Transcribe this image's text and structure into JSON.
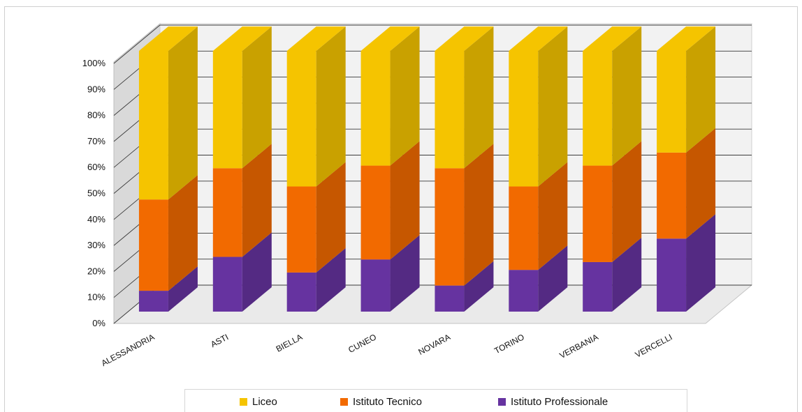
{
  "chart_data": {
    "type": "bar",
    "stacked": true,
    "percent": true,
    "three_d": true,
    "categories": [
      "ALESSANDRIA",
      "ASTI",
      "BIELLA",
      "CUNEO",
      "NOVARA",
      "TORINO",
      "VERBANIA",
      "VERCELLI"
    ],
    "series": [
      {
        "name": "Istituto Professionale",
        "color": "#6633a0",
        "values": [
          8,
          21,
          15,
          20,
          10,
          16,
          19,
          28
        ]
      },
      {
        "name": "Istituto Tecnico",
        "color": "#f26a00",
        "values": [
          35,
          34,
          33,
          36,
          45,
          32,
          37,
          33
        ]
      },
      {
        "name": "Liceo",
        "color": "#f5c400",
        "values": [
          57,
          45,
          52,
          44,
          45,
          52,
          44,
          39
        ]
      }
    ],
    "y_ticks": [
      "0%",
      "10%",
      "20%",
      "30%",
      "40%",
      "50%",
      "60%",
      "70%",
      "80%",
      "90%",
      "100%"
    ],
    "ylim": [
      0,
      100
    ],
    "grid": true,
    "legend_position": "bottom"
  },
  "legend": {
    "items": [
      {
        "label": "Liceo",
        "color": "#f5c400"
      },
      {
        "label": "Istituto Tecnico",
        "color": "#f26a00"
      },
      {
        "label": "Istituto Professionale",
        "color": "#6633a0"
      }
    ]
  }
}
